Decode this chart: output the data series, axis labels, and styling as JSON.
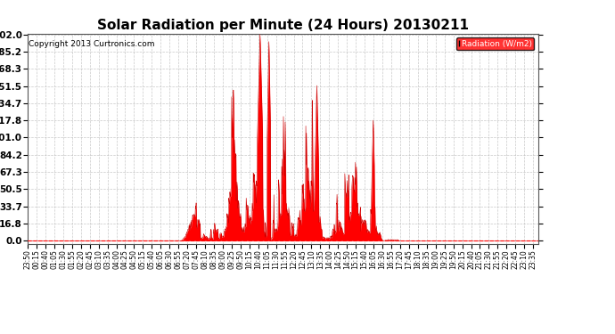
{
  "title": "Solar Radiation per Minute (24 Hours) 20130211",
  "copyright": "Copyright 2013 Curtronics.com",
  "legend_label": "Radiation (W/m2)",
  "yticks": [
    0.0,
    16.8,
    33.7,
    50.5,
    67.3,
    84.2,
    101.0,
    117.8,
    134.7,
    151.5,
    168.3,
    185.2,
    202.0
  ],
  "ymax": 202.0,
  "fill_color": "#FF0000",
  "line_color": "#CC0000",
  "background_color": "#FFFFFF",
  "grid_color": "#BBBBBB",
  "dashed_line_color": "#FF0000",
  "title_fontsize": 11,
  "copyright_fontsize": 6.5,
  "tick_fontsize": 5.5,
  "ytick_fontsize": 7.5
}
